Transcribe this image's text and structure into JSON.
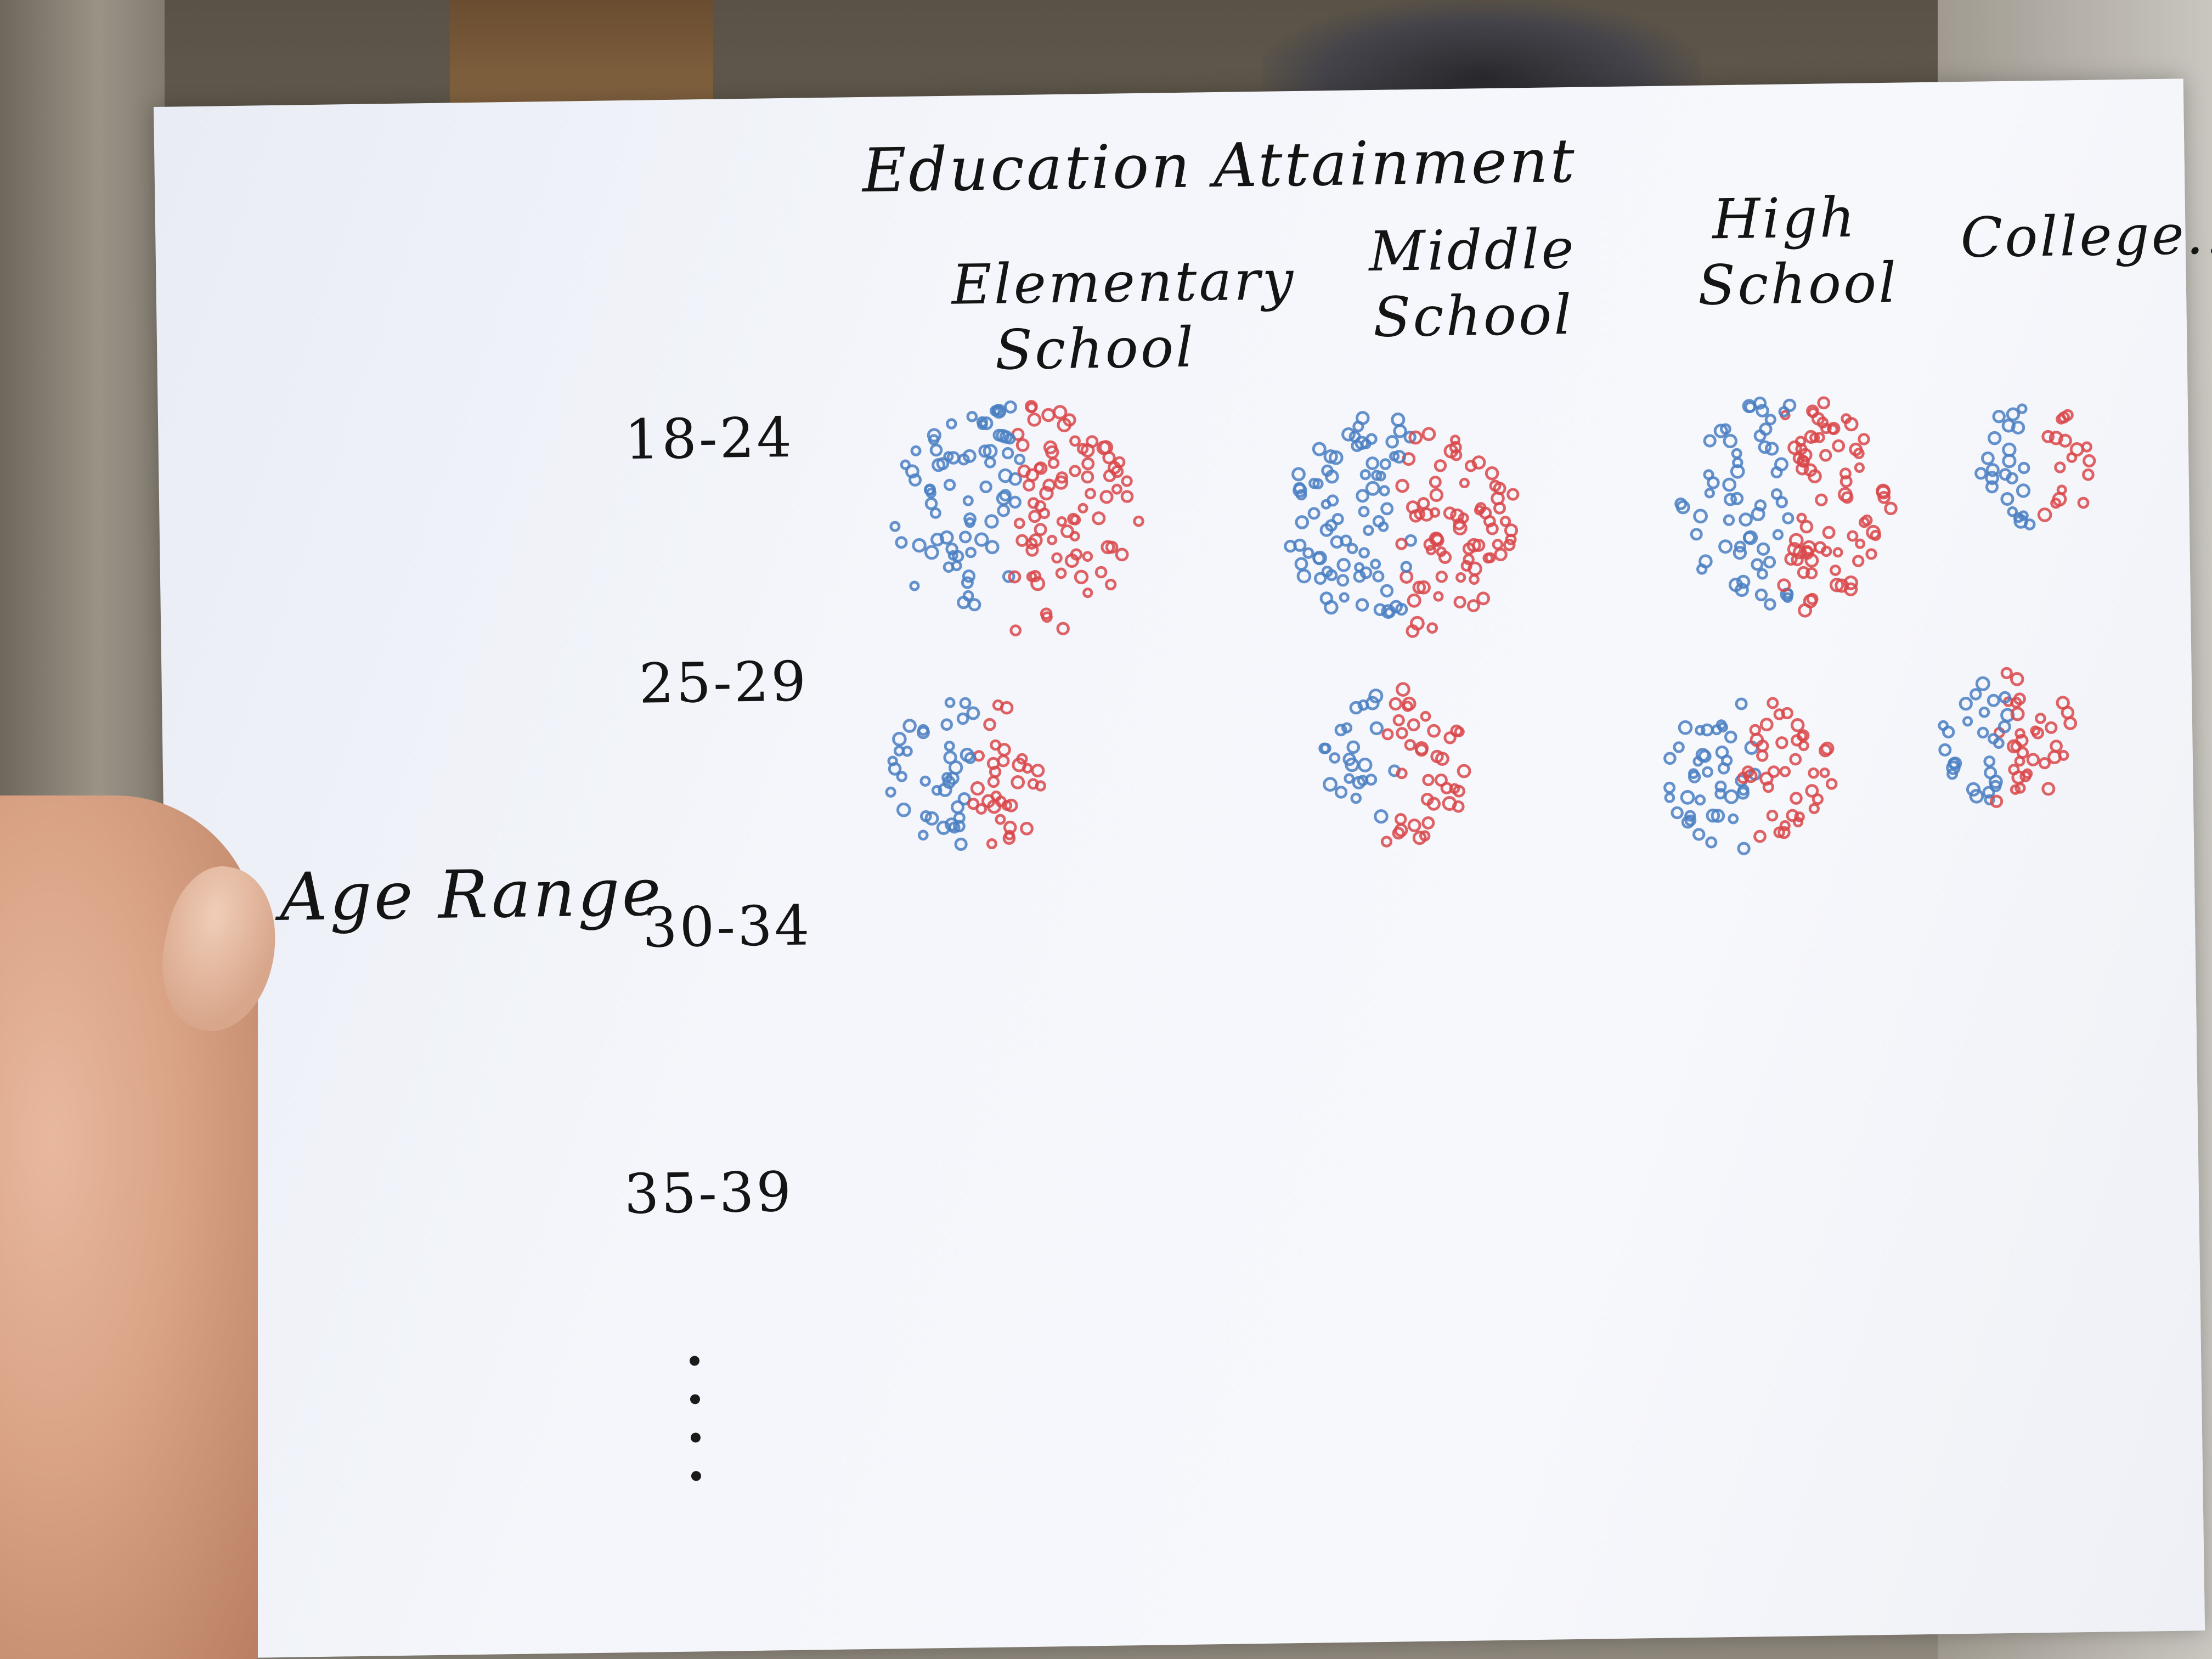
{
  "title": "Education Attainment",
  "axis_label": "Age Range",
  "columns": [
    {
      "line1": "Elementary",
      "line2": "School"
    },
    {
      "line1": "Middle",
      "line2": "School"
    },
    {
      "line1": "High",
      "line2": "School"
    },
    {
      "line1": "College...",
      "line2": ""
    }
  ],
  "rows": [
    "18-24",
    "25-29",
    "30-34",
    "35-39"
  ],
  "colors": {
    "blue": "#4a7fc2",
    "red": "#d9484a",
    "ink": "#141414"
  }
}
